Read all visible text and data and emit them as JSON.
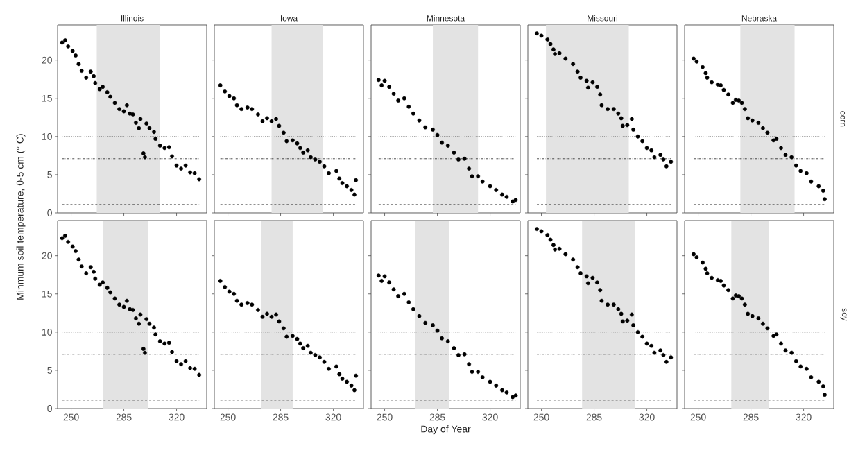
{
  "chart_data": [
    {
      "type": "scatter",
      "title": "Illinois",
      "color": "#000000",
      "marker": "circle",
      "xlim": [
        241,
        340
      ],
      "ylim": [
        0,
        24.6
      ],
      "xticks": [
        250,
        285,
        320
      ],
      "yticks": [
        0,
        5,
        10,
        15,
        20
      ],
      "tick_labels": "y",
      "x": [
        244,
        246,
        248,
        251,
        253,
        255,
        257,
        260,
        263,
        265,
        266,
        269,
        271,
        274,
        276,
        279,
        282,
        285,
        287,
        289,
        291,
        293,
        295,
        296,
        298,
        299,
        300,
        302,
        305,
        306,
        309,
        312,
        315,
        317,
        320,
        323,
        326,
        329,
        332,
        335
      ],
      "values": [
        22.3,
        22.6,
        21.8,
        21.2,
        20.6,
        19.5,
        18.6,
        17.7,
        18.5,
        17.9,
        17.0,
        16.2,
        16.5,
        15.8,
        15.2,
        14.4,
        13.6,
        13.3,
        14.1,
        13.0,
        12.9,
        11.8,
        11.1,
        12.3,
        7.8,
        7.3,
        11.7,
        11.1,
        10.6,
        9.7,
        8.8,
        8.5,
        8.6,
        7.4,
        6.2,
        5.8,
        6.2,
        5.3,
        5.2,
        4.4
      ],
      "bands": [
        {
          "axis": "x",
          "from": 267,
          "to": 309,
          "color": "#e3e3e3"
        }
      ],
      "ref_lines": [
        {
          "axis": "y",
          "value": 10,
          "line_style": "dotted"
        },
        {
          "axis": "y",
          "value": 7.1,
          "line_style": "dashdot"
        },
        {
          "axis": "y",
          "value": 1.1,
          "line_style": "dashed"
        }
      ]
    },
    {
      "type": "scatter",
      "title": "Iowa",
      "color": "#000000",
      "marker": "circle",
      "xlim": [
        241,
        340
      ],
      "ylim": [
        0,
        24.6
      ],
      "xticks": [
        250,
        285,
        320
      ],
      "yticks": [
        0,
        5,
        10,
        15,
        20
      ],
      "tick_labels": false,
      "x": [
        245,
        248,
        251,
        254,
        256,
        259,
        263,
        266,
        270,
        273,
        276,
        279,
        282,
        284,
        287,
        289,
        293,
        296,
        298,
        300,
        303,
        305,
        308,
        311,
        314,
        317,
        322,
        324,
        326,
        329,
        332,
        334,
        335
      ],
      "values": [
        16.7,
        15.9,
        15.3,
        15.0,
        14.1,
        13.6,
        13.8,
        13.6,
        12.9,
        12.0,
        12.4,
        12.0,
        12.3,
        11.4,
        10.5,
        9.4,
        9.5,
        9.1,
        8.5,
        7.9,
        8.2,
        7.3,
        7.0,
        6.7,
        6.1,
        5.2,
        5.5,
        4.5,
        3.9,
        3.5,
        3.0,
        2.4,
        4.3
      ],
      "bands": [
        {
          "axis": "x",
          "from": 279,
          "to": 313,
          "color": "#e3e3e3"
        }
      ],
      "ref_lines": [
        {
          "axis": "y",
          "value": 10,
          "line_style": "dotted"
        },
        {
          "axis": "y",
          "value": 7.1,
          "line_style": "dashdot"
        },
        {
          "axis": "y",
          "value": 1.1,
          "line_style": "dashed"
        }
      ]
    },
    {
      "type": "scatter",
      "title": "Minnesota",
      "color": "#000000",
      "marker": "circle",
      "xlim": [
        241,
        340
      ],
      "ylim": [
        0,
        24.6
      ],
      "xticks": [
        250,
        285,
        320
      ],
      "yticks": [
        0,
        5,
        10,
        15,
        20
      ],
      "tick_labels": false,
      "x": [
        246,
        248,
        250,
        253,
        256,
        259,
        263,
        266,
        269,
        273,
        277,
        282,
        285,
        288,
        292,
        296,
        299,
        303,
        306,
        308,
        312,
        315,
        320,
        324,
        328,
        331,
        335,
        337
      ],
      "values": [
        17.4,
        16.7,
        17.3,
        16.5,
        15.6,
        14.7,
        15.0,
        13.9,
        13.0,
        12.1,
        11.2,
        10.9,
        10.2,
        9.2,
        8.8,
        7.9,
        7.0,
        7.1,
        5.8,
        4.8,
        4.8,
        4.1,
        3.5,
        3.0,
        2.4,
        2.1,
        1.5,
        1.7
      ],
      "bands": [
        {
          "axis": "x",
          "from": 282,
          "to": 312,
          "color": "#e3e3e3"
        }
      ],
      "ref_lines": [
        {
          "axis": "y",
          "value": 10,
          "line_style": "dotted"
        },
        {
          "axis": "y",
          "value": 7.1,
          "line_style": "dashdot"
        },
        {
          "axis": "y",
          "value": 1.1,
          "line_style": "dashed"
        }
      ]
    },
    {
      "type": "scatter",
      "title": "Missouri",
      "color": "#000000",
      "marker": "circle",
      "xlim": [
        241,
        340
      ],
      "ylim": [
        0,
        24.6
      ],
      "xticks": [
        250,
        285,
        320
      ],
      "yticks": [
        0,
        5,
        10,
        15,
        20
      ],
      "tick_labels": false,
      "x": [
        247,
        250,
        254,
        256,
        258,
        259,
        262,
        266,
        271,
        274,
        276,
        280,
        281,
        284,
        287,
        289,
        290,
        294,
        298,
        301,
        303,
        304,
        307,
        310,
        311,
        314,
        317,
        320,
        323,
        325,
        329,
        331,
        333,
        336
      ],
      "values": [
        23.5,
        23.2,
        22.7,
        22.1,
        21.4,
        20.8,
        20.9,
        20.2,
        19.5,
        18.5,
        17.7,
        17.3,
        16.4,
        17.1,
        16.5,
        15.5,
        14.1,
        13.6,
        13.6,
        13.0,
        12.4,
        11.4,
        11.5,
        12.3,
        10.9,
        10.0,
        9.4,
        8.5,
        8.2,
        7.3,
        7.6,
        7.0,
        6.1,
        6.7
      ],
      "bands": [
        {
          "axis": "x",
          "from": 253,
          "to": 308,
          "color": "#e3e3e3"
        }
      ],
      "ref_lines": [
        {
          "axis": "y",
          "value": 10,
          "line_style": "dotted"
        },
        {
          "axis": "y",
          "value": 7.1,
          "line_style": "dashdot"
        },
        {
          "axis": "y",
          "value": 1.1,
          "line_style": "dashed"
        }
      ]
    },
    {
      "type": "scatter",
      "title": "Nebraska",
      "y2label": "corn",
      "color": "#000000",
      "marker": "circle",
      "xlim": [
        241,
        340
      ],
      "ylim": [
        0,
        24.6
      ],
      "xticks": [
        250,
        285,
        320
      ],
      "yticks": [
        0,
        5,
        10,
        15,
        20
      ],
      "tick_labels": false,
      "x": [
        247,
        249,
        253,
        255,
        256,
        259,
        263,
        265,
        267,
        270,
        273,
        275,
        277,
        279,
        281,
        283,
        286,
        290,
        293,
        296,
        300,
        302,
        305,
        308,
        312,
        315,
        318,
        322,
        325,
        330,
        333,
        334
      ],
      "values": [
        20.2,
        19.8,
        19.1,
        18.3,
        17.7,
        17.1,
        16.8,
        16.7,
        16.1,
        15.5,
        14.4,
        14.8,
        14.7,
        14.4,
        13.6,
        12.4,
        12.1,
        11.8,
        11.1,
        10.5,
        9.5,
        9.7,
        8.5,
        7.6,
        7.3,
        6.2,
        5.5,
        5.2,
        4.1,
        3.5,
        2.9,
        1.8
      ],
      "bands": [
        {
          "axis": "x",
          "from": 278,
          "to": 314,
          "color": "#e3e3e3"
        }
      ],
      "ref_lines": [
        {
          "axis": "y",
          "value": 10,
          "line_style": "dotted"
        },
        {
          "axis": "y",
          "value": 7.1,
          "line_style": "dashdot"
        },
        {
          "axis": "y",
          "value": 1.1,
          "line_style": "dashed"
        }
      ]
    },
    {
      "type": "scatter",
      "ylabel": "Minmum soil temperature, 0-5 cm (° C)",
      "color": "#000000",
      "marker": "circle",
      "xlim": [
        241,
        340
      ],
      "ylim": [
        0,
        24.6
      ],
      "xticks": [
        250,
        285,
        320
      ],
      "yticks": [
        0,
        5,
        10,
        15,
        20
      ],
      "x": [
        244,
        246,
        248,
        251,
        253,
        255,
        257,
        260,
        263,
        265,
        266,
        269,
        271,
        274,
        276,
        279,
        282,
        285,
        287,
        289,
        291,
        293,
        295,
        296,
        298,
        299,
        300,
        302,
        305,
        306,
        309,
        312,
        315,
        317,
        320,
        323,
        326,
        329,
        332,
        335
      ],
      "values": [
        22.3,
        22.6,
        21.8,
        21.2,
        20.6,
        19.5,
        18.6,
        17.7,
        18.5,
        17.9,
        17.0,
        16.2,
        16.5,
        15.8,
        15.2,
        14.4,
        13.6,
        13.3,
        14.1,
        13.0,
        12.9,
        11.8,
        11.1,
        12.3,
        7.8,
        7.3,
        11.7,
        11.1,
        10.6,
        9.7,
        8.8,
        8.5,
        8.6,
        7.4,
        6.2,
        5.8,
        6.2,
        5.3,
        5.2,
        4.4
      ],
      "bands": [
        {
          "axis": "x",
          "from": 271,
          "to": 301,
          "color": "#e3e3e3"
        }
      ],
      "ref_lines": [
        {
          "axis": "y",
          "value": 10,
          "line_style": "dotted"
        },
        {
          "axis": "y",
          "value": 7.1,
          "line_style": "dashdot"
        },
        {
          "axis": "y",
          "value": 1.1,
          "line_style": "dashed"
        }
      ]
    },
    {
      "type": "scatter",
      "color": "#000000",
      "marker": "circle",
      "xlim": [
        241,
        340
      ],
      "ylim": [
        0,
        24.6
      ],
      "xticks": [
        250,
        285,
        320
      ],
      "yticks": [
        0,
        5,
        10,
        15,
        20
      ],
      "tick_labels": "x",
      "x": [
        245,
        248,
        251,
        254,
        256,
        259,
        263,
        266,
        270,
        273,
        276,
        279,
        282,
        284,
        287,
        289,
        293,
        296,
        298,
        300,
        303,
        305,
        308,
        311,
        314,
        317,
        322,
        324,
        326,
        329,
        332,
        334,
        335
      ],
      "values": [
        16.7,
        15.9,
        15.3,
        15.0,
        14.1,
        13.6,
        13.8,
        13.6,
        12.9,
        12.0,
        12.4,
        12.0,
        12.3,
        11.4,
        10.5,
        9.4,
        9.5,
        9.1,
        8.5,
        7.9,
        8.2,
        7.3,
        7.0,
        6.7,
        6.1,
        5.2,
        5.5,
        4.5,
        3.9,
        3.5,
        3.0,
        2.4,
        4.3
      ],
      "bands": [
        {
          "axis": "x",
          "from": 272,
          "to": 293,
          "color": "#e3e3e3"
        }
      ],
      "ref_lines": [
        {
          "axis": "y",
          "value": 10,
          "line_style": "dotted"
        },
        {
          "axis": "y",
          "value": 7.1,
          "line_style": "dashdot"
        },
        {
          "axis": "y",
          "value": 1.1,
          "line_style": "dashed"
        }
      ]
    },
    {
      "type": "scatter",
      "xlabel": "Day of Year",
      "color": "#000000",
      "marker": "circle",
      "xlim": [
        241,
        340
      ],
      "ylim": [
        0,
        24.6
      ],
      "xticks": [
        250,
        285,
        320
      ],
      "yticks": [
        0,
        5,
        10,
        15,
        20
      ],
      "tick_labels": "x",
      "x": [
        246,
        248,
        250,
        253,
        256,
        259,
        263,
        266,
        269,
        273,
        277,
        282,
        285,
        288,
        292,
        296,
        299,
        303,
        306,
        308,
        312,
        315,
        320,
        324,
        328,
        331,
        335,
        337
      ],
      "values": [
        17.4,
        16.7,
        17.3,
        16.5,
        15.6,
        14.7,
        15.0,
        13.9,
        13.0,
        12.1,
        11.2,
        10.9,
        10.2,
        9.2,
        8.8,
        7.9,
        7.0,
        7.1,
        5.8,
        4.8,
        4.8,
        4.1,
        3.5,
        3.0,
        2.4,
        2.1,
        1.5,
        1.7
      ],
      "bands": [
        {
          "axis": "x",
          "from": 270,
          "to": 293,
          "color": "#e3e3e3"
        }
      ],
      "ref_lines": [
        {
          "axis": "y",
          "value": 10,
          "line_style": "dotted"
        },
        {
          "axis": "y",
          "value": 7.1,
          "line_style": "dashdot"
        },
        {
          "axis": "y",
          "value": 1.1,
          "line_style": "dashed"
        }
      ]
    },
    {
      "type": "scatter",
      "color": "#000000",
      "marker": "circle",
      "xlim": [
        241,
        340
      ],
      "ylim": [
        0,
        24.6
      ],
      "xticks": [
        250,
        285,
        320
      ],
      "yticks": [
        0,
        5,
        10,
        15,
        20
      ],
      "tick_labels": "x",
      "x": [
        247,
        250,
        254,
        256,
        258,
        259,
        262,
        266,
        271,
        274,
        276,
        280,
        281,
        284,
        287,
        289,
        290,
        294,
        298,
        301,
        303,
        304,
        307,
        310,
        311,
        314,
        317,
        320,
        323,
        325,
        329,
        331,
        333,
        336
      ],
      "values": [
        23.5,
        23.2,
        22.7,
        22.1,
        21.4,
        20.8,
        20.9,
        20.2,
        19.5,
        18.5,
        17.7,
        17.3,
        16.4,
        17.1,
        16.5,
        15.5,
        14.1,
        13.6,
        13.6,
        13.0,
        12.4,
        11.4,
        11.5,
        12.3,
        10.9,
        10.0,
        9.4,
        8.5,
        8.2,
        7.3,
        7.6,
        7.0,
        6.1,
        6.7
      ],
      "bands": [
        {
          "axis": "x",
          "from": 277,
          "to": 312,
          "color": "#e3e3e3"
        }
      ],
      "ref_lines": [
        {
          "axis": "y",
          "value": 10,
          "line_style": "dotted"
        },
        {
          "axis": "y",
          "value": 7.1,
          "line_style": "dashdot"
        },
        {
          "axis": "y",
          "value": 1.1,
          "line_style": "dashed"
        }
      ]
    },
    {
      "type": "scatter",
      "y2label": "soy",
      "color": "#000000",
      "marker": "circle",
      "xlim": [
        241,
        340
      ],
      "ylim": [
        0,
        24.6
      ],
      "xticks": [
        250,
        285,
        320
      ],
      "yticks": [
        0,
        5,
        10,
        15,
        20
      ],
      "tick_labels": "x",
      "x": [
        247,
        249,
        253,
        255,
        256,
        259,
        263,
        265,
        267,
        270,
        273,
        275,
        277,
        279,
        281,
        283,
        286,
        290,
        293,
        296,
        300,
        302,
        305,
        308,
        312,
        315,
        318,
        322,
        325,
        330,
        333,
        334
      ],
      "values": [
        20.2,
        19.8,
        19.1,
        18.3,
        17.7,
        17.1,
        16.8,
        16.7,
        16.1,
        15.5,
        14.4,
        14.8,
        14.7,
        14.4,
        13.6,
        12.4,
        12.1,
        11.8,
        11.1,
        10.5,
        9.5,
        9.7,
        8.5,
        7.6,
        7.3,
        6.2,
        5.5,
        5.2,
        4.1,
        3.5,
        2.9,
        1.8
      ],
      "bands": [
        {
          "axis": "x",
          "from": 272,
          "to": 297,
          "color": "#e3e3e3"
        }
      ],
      "ref_lines": [
        {
          "axis": "y",
          "value": 10,
          "line_style": "dotted"
        },
        {
          "axis": "y",
          "value": 7.1,
          "line_style": "dashdot"
        },
        {
          "axis": "y",
          "value": 1.1,
          "line_style": "dashed"
        }
      ]
    }
  ]
}
